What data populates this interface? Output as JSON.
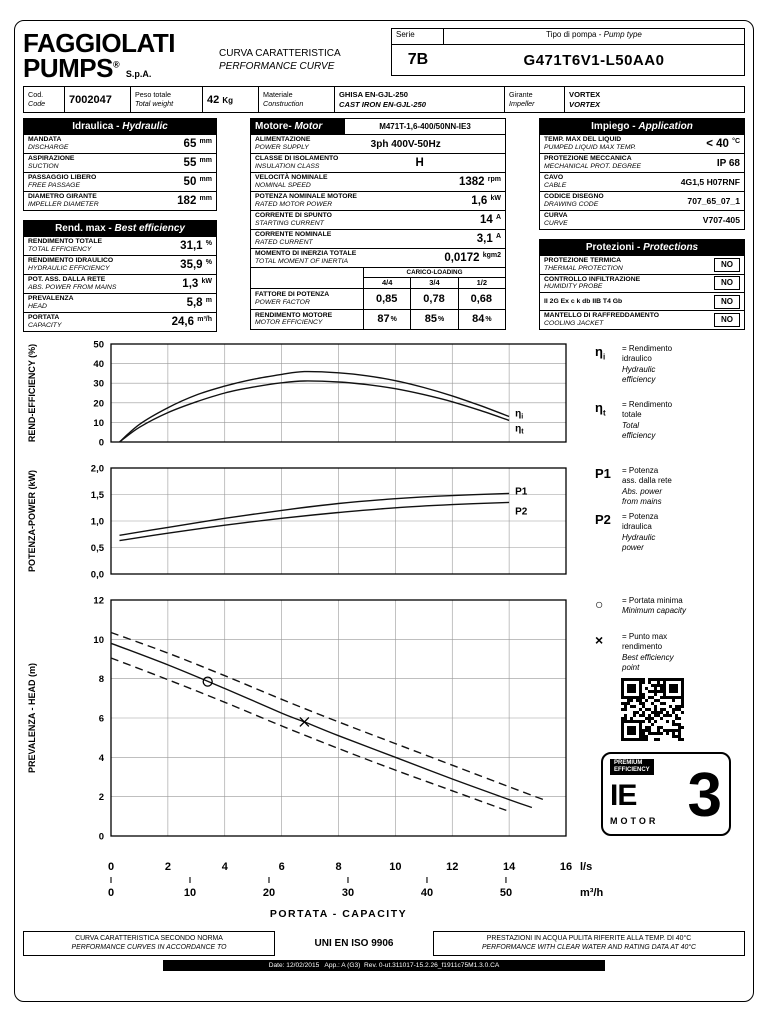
{
  "colors": {
    "ink": "#000000",
    "paper": "#ffffff",
    "grid": "#999999"
  },
  "header": {
    "brand_line1": "FAGGIOLATI",
    "brand_line2": "PUMPS",
    "brand_reg": "®",
    "brand_suffix": "S.p.A.",
    "title_it": "CURVA CARATTERISTICA",
    "title_en": "PERFORMANCE CURVE",
    "serie_label": "Serie",
    "serie_value": "7B",
    "pump_type_label_it": "Tipo di pompa - ",
    "pump_type_label_en": "Pump type",
    "pump_type_value": "G471T6V1-L50AA0"
  },
  "info": {
    "cod_it": "Cod.",
    "cod_en": "Code",
    "cod_value": "7002047",
    "weight_it": "Peso totale",
    "weight_en": "Total weight",
    "weight_value": "42",
    "weight_unit": "Kg",
    "material_it": "Materiale",
    "material_en": "Construction",
    "material_value_it": "GHISA EN-GJL-250",
    "material_value_en": "CAST IRON EN-GJL-250",
    "impeller_it": "Girante",
    "impeller_en": "Impeller",
    "impeller_value_it": "VORTEX",
    "impeller_value_en": "VORTEX"
  },
  "hydraulic": {
    "title_it": "Idraulica - ",
    "title_en": "Hydraulic",
    "rows": [
      {
        "it": "MANDATA",
        "en": "DISCHARGE",
        "value": "65",
        "unit": "mm"
      },
      {
        "it": "ASPIRAZIONE",
        "en": "SUCTION",
        "value": "55",
        "unit": "mm"
      },
      {
        "it": "PASSAGGIO LIBERO",
        "en": "FREE PASSAGE",
        "value": "50",
        "unit": "mm"
      },
      {
        "it": "DIAMETRO GIRANTE",
        "en": "IMPELLER DIAMETER",
        "value": "182",
        "unit": "mm"
      }
    ]
  },
  "best_efficiency": {
    "title_it": "Rend. max - ",
    "title_en": "Best efficiency",
    "rows": [
      {
        "it": "RENDIMENTO TOTALE",
        "en": "TOTAL EFFICIENCY",
        "value": "31,1",
        "unit": "%"
      },
      {
        "it": "RENDIMENTO IDRAULICO",
        "en": "HYDRAULIC EFFICIENCY",
        "value": "35,9",
        "unit": "%"
      },
      {
        "it": "POT. ASS. DALLA RETE",
        "en": "ABS. POWER FROM MAINS",
        "value": "1,3",
        "unit": "kW"
      },
      {
        "it": "PREVALENZA",
        "en": "HEAD",
        "value": "5,8",
        "unit": "m"
      },
      {
        "it": "PORTATA",
        "en": "CAPACITY",
        "value": "24,6",
        "unit": "m³/h"
      }
    ]
  },
  "motor": {
    "title_it": "Motore- ",
    "title_en": "Motor",
    "model": "M471T-1,6-400/50NN-IE3",
    "rows": [
      {
        "it": "ALIMENTAZIONE",
        "en": "POWER SUPPLY",
        "value": "3ph 400V-50Hz",
        "unit": ""
      },
      {
        "it": "CLASSE DI ISOLAMENTO",
        "en": "INSULATION CLASS",
        "value": "H",
        "unit": ""
      },
      {
        "it": "VELOCITÀ NOMINALE",
        "en": "NOMINAL SPEED",
        "value": "1382",
        "unit": "rpm"
      },
      {
        "it": "POTENZA NOMINALE MOTORE",
        "en": "RATED MOTOR POWER",
        "value": "1,6",
        "unit": "kW"
      },
      {
        "it": "CORRENTE DI SPUNTO",
        "en": "STARTING CURRENT",
        "value": "14",
        "unit": "A"
      },
      {
        "it": "CORRENTE NOMINALE",
        "en": "RATED CURRENT",
        "value": "3,1",
        "unit": "A"
      },
      {
        "it": "MOMENTO DI INERZIA TOTALE",
        "en": "TOTAL MOMENT OF INERTIA",
        "value": "0,0172",
        "unit": "kgm2"
      }
    ],
    "loading": {
      "header": "CARICO-LOADING",
      "cols": [
        "4/4",
        "3/4",
        "1/2"
      ],
      "rows": [
        {
          "it": "FATTORE DI POTENZA",
          "en": "POWER FACTOR",
          "values": [
            "0,85",
            "0,78",
            "0,68"
          ],
          "unit": ""
        },
        {
          "it": "RENDIMENTO MOTORE",
          "en": "MOTOR EFFICIENCY",
          "values": [
            "87",
            "85",
            "84"
          ],
          "unit": "%"
        }
      ]
    }
  },
  "application": {
    "title_it": "Impiego - ",
    "title_en": "Application",
    "rows": [
      {
        "it": "TEMP. MAX DEL LIQUID",
        "en": "PUMPED LIQUID MAX TEMP.",
        "value": "< 40",
        "unit": "°C"
      },
      {
        "it": "PROTEZIONE MECCANICA",
        "en": "MECHANICAL PROT. DEGREE",
        "value": "IP 68",
        "unit": ""
      },
      {
        "it": "CAVO",
        "en": "CABLE",
        "value": "4G1,5 H07RNF",
        "unit": ""
      },
      {
        "it": "CODICE DISEGNO",
        "en": "DRAWING CODE",
        "value": "707_65_07_1",
        "unit": ""
      },
      {
        "it": "CURVA",
        "en": "CURVE",
        "value": "V707-405",
        "unit": ""
      }
    ]
  },
  "protections": {
    "title_it": "Protezioni - ",
    "title_en": "Protections",
    "rows": [
      {
        "it": "PROTEZIONE TERMICA",
        "en": "THERMAL PROTECTION",
        "value": "NO"
      },
      {
        "it": "CONTROLLO INFILTRAZIONE",
        "en": "HUMIDITY PROBE",
        "value": "NO"
      },
      {
        "it": "II 2G Ex c k db IIB T4 Gb",
        "en": "",
        "value": "NO"
      },
      {
        "it": "MANTELLO DI RAFFREDDAMENTO",
        "en": "COOLING JACKET",
        "value": "NO"
      }
    ]
  },
  "chart_data": [
    {
      "type": "line",
      "ylabel": "REND-EFFICIENCY (%)",
      "ylim": [
        0,
        50
      ],
      "yticks": [
        0,
        10,
        20,
        30,
        40,
        50
      ],
      "ytick_labels": [
        "0",
        "10",
        "20",
        "30",
        "40",
        "50"
      ],
      "grid": true,
      "series": [
        {
          "name": "hydraulic-efficiency",
          "label": "η",
          "label_sub": "i",
          "label_dy": -3,
          "points": [
            [
              0.3,
              0
            ],
            [
              1,
              9
            ],
            [
              2,
              17.5
            ],
            [
              3,
              24
            ],
            [
              4,
              28.5
            ],
            [
              5,
              32
            ],
            [
              6,
              34.5
            ],
            [
              6.8,
              35.9
            ],
            [
              8,
              35.3
            ],
            [
              9,
              33.8
            ],
            [
              10,
              31.3
            ],
            [
              11,
              27.8
            ],
            [
              12,
              23.5
            ],
            [
              13,
              18.5
            ],
            [
              14,
              13
            ]
          ]
        },
        {
          "name": "total-efficiency",
          "label": "η",
          "label_sub": "t",
          "label_dy": 8,
          "points": [
            [
              0.3,
              0
            ],
            [
              1,
              7.5
            ],
            [
              2,
              15
            ],
            [
              3,
              20.5
            ],
            [
              4,
              25
            ],
            [
              5,
              28
            ],
            [
              6,
              30.2
            ],
            [
              6.8,
              31.1
            ],
            [
              8,
              30.6
            ],
            [
              9,
              29.3
            ],
            [
              10,
              27.2
            ],
            [
              11,
              24.2
            ],
            [
              12,
              20.5
            ],
            [
              13,
              16
            ],
            [
              14,
              11
            ]
          ]
        }
      ]
    },
    {
      "type": "line",
      "ylabel": "POTENZA-POWER (kW)",
      "ylim": [
        0,
        2
      ],
      "yticks": [
        0,
        0.5,
        1,
        1.5,
        2
      ],
      "ytick_labels": [
        "0,0",
        "0,5",
        "1,0",
        "1,5",
        "2,0"
      ],
      "grid": true,
      "series": [
        {
          "name": "P1-abs-power",
          "label": "P1",
          "label_dy": -2,
          "points": [
            [
              0.3,
              0.73
            ],
            [
              2,
              0.88
            ],
            [
              4,
              1.05
            ],
            [
              6,
              1.2
            ],
            [
              8,
              1.33
            ],
            [
              10,
              1.42
            ],
            [
              12,
              1.48
            ],
            [
              14,
              1.52
            ]
          ]
        },
        {
          "name": "P2-hydraulic-power",
          "label": "P2",
          "label_dy": 9,
          "points": [
            [
              0.3,
              0.63
            ],
            [
              2,
              0.77
            ],
            [
              4,
              0.92
            ],
            [
              6,
              1.05
            ],
            [
              8,
              1.16
            ],
            [
              10,
              1.25
            ],
            [
              12,
              1.31
            ],
            [
              14,
              1.35
            ]
          ]
        }
      ]
    },
    {
      "type": "line",
      "ylabel": "PREVALENZA - HEAD (m)",
      "ylim": [
        0,
        12
      ],
      "yticks": [
        0,
        2,
        4,
        6,
        8,
        10,
        12
      ],
      "ytick_labels": [
        "0",
        "2",
        "4",
        "6",
        "8",
        "10",
        "12"
      ],
      "grid": true,
      "series": [
        {
          "name": "head-curve",
          "points": [
            [
              0,
              9.8
            ],
            [
              2,
              8.7
            ],
            [
              4,
              7.5
            ],
            [
              6,
              6.25
            ],
            [
              6.8,
              5.8
            ],
            [
              8,
              5.1
            ],
            [
              10,
              4.0
            ],
            [
              12,
              2.9
            ],
            [
              14,
              1.85
            ],
            [
              14.8,
              1.45
            ]
          ]
        },
        {
          "name": "head-upper-tolerance",
          "dashed": true,
          "points": [
            [
              0,
              10.35
            ],
            [
              2,
              9.3
            ],
            [
              4,
              8.15
            ],
            [
              6,
              6.95
            ],
            [
              8,
              5.8
            ],
            [
              10,
              4.7
            ],
            [
              12,
              3.6
            ],
            [
              14,
              2.5
            ],
            [
              15.3,
              1.8
            ]
          ]
        },
        {
          "name": "head-lower-tolerance",
          "dashed": true,
          "points": [
            [
              0,
              9.05
            ],
            [
              2,
              7.95
            ],
            [
              4,
              6.8
            ],
            [
              6,
              5.6
            ],
            [
              8,
              4.45
            ],
            [
              10,
              3.35
            ],
            [
              12,
              2.3
            ],
            [
              13.9,
              1.3
            ]
          ]
        }
      ],
      "markers": [
        {
          "shape": "circle",
          "name": "minimum-capacity",
          "x": 3.4,
          "y": 7.85
        },
        {
          "shape": "x",
          "name": "best-efficiency-point",
          "x": 6.8,
          "y": 5.8
        }
      ]
    }
  ],
  "x_axis": {
    "max": 16,
    "ls_ticks": [
      0,
      2,
      4,
      6,
      8,
      10,
      12,
      14,
      16
    ],
    "ls_unit": "l/s",
    "m3h_ticks": [
      0,
      10,
      20,
      30,
      40,
      50
    ],
    "m3h_unit": "m³/h",
    "m3h_per_ls": 3.6,
    "xlabel": "PORTATA - CAPACITY"
  },
  "legend": {
    "eta_i": {
      "sym": "η",
      "sub": "i",
      "text_it": "= Rendimento\nidraulico",
      "text_en": "Hydraulic\nefficiency"
    },
    "eta_t": {
      "sym": "η",
      "sub": "t",
      "text_it": "= Rendimento\ntotale",
      "text_en": "Total\nefficiency"
    },
    "p1": {
      "sym": "P1",
      "sub": "",
      "text_it": "= Potenza\nass. dalla rete",
      "text_en": "Abs. power\nfrom mains"
    },
    "p2": {
      "sym": "P2",
      "sub": "",
      "text_it": "= Potenza\nidraulica",
      "text_en": "Hydraulic\npower"
    },
    "min_capacity": {
      "sym": "○",
      "sub": "",
      "text_it": "= Portata minima",
      "text_en": "Minimum capacity"
    },
    "best_point": {
      "sym": "×",
      "sub": "",
      "text_it": "= Punto max\nrendimento",
      "text_en": "Best efficiency\npoint"
    },
    "ie3": {
      "premium": "PREMIUM\nEFFICIENCY",
      "ie": "IE",
      "three": "3",
      "motor": "MOTOR"
    }
  },
  "footer": {
    "left_it": "CURVA CARATTERISTICA SECONDO NORMA",
    "left_en": "PERFORMANCE CURVES IN ACCORDANCE TO",
    "standard": "UNI EN ISO 9906",
    "right_it": "PRESTAZIONI IN ACQUA PULITA RIFERITE ALLA TEMP. DI 40°C",
    "right_en": "PERFORMANCE WITH CLEAR WATER AND RATING DATA AT 40°C",
    "date_line": "Date: 12/02/2015   App.: A (G3)  Rev. 0-ut.311017-15.2.26_f1911c75M1.3.0.CA"
  }
}
